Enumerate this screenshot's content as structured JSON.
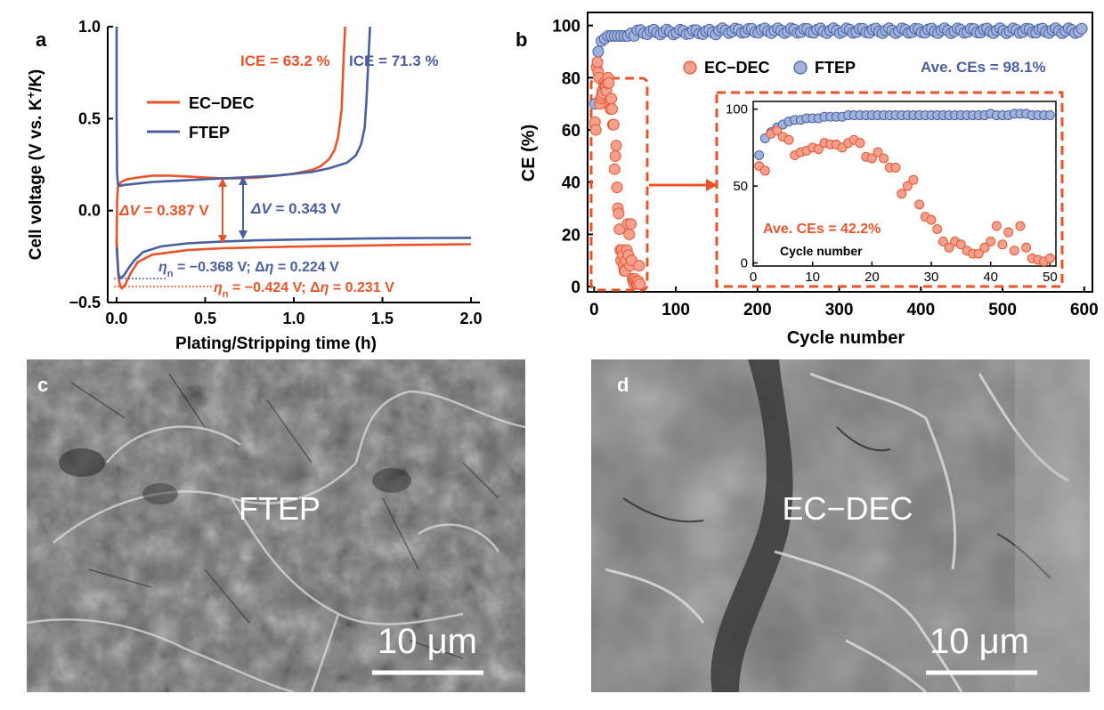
{
  "colors": {
    "ec_dec": "#e8542a",
    "ftep": "#4a5fa0",
    "ec_dec_marker_fill": "#f4a090",
    "ftep_marker_fill": "#9fb2dc",
    "axis": "#000000",
    "sem_background": "#6e6e6e"
  },
  "panel_labels": {
    "a": "a",
    "b": "b",
    "c": "c",
    "d": "d"
  },
  "panel_a": {
    "ice_ec": "ICE = 63.2 %",
    "ice_ftep": "ICE = 71.3 %",
    "dv_ec_sym": "ΔV",
    "dv_ec_val": " = 0.387 V",
    "dv_ftep_sym": "ΔV",
    "dv_ftep_val": " = 0.343 V",
    "eta_ftep_a": "η",
    "eta_ftep_sub": "n",
    "eta_ftep_b": " = −0.368 V; Δ",
    "eta_ftep_c": "η",
    "eta_ftep_d": " = 0.224 V",
    "eta_ec_a": "η",
    "eta_ec_sub": "n",
    "eta_ec_b": " = −0.424 V; Δ",
    "eta_ec_c": "η",
    "eta_ec_d": " = 0.231 V"
  },
  "panel_b": {
    "avg_ftep": "Ave. CEs = 98.1%",
    "avg_ec": "Ave. CEs = 42.2%",
    "inset_xlabel": "Cycle number"
  },
  "panel_c": {
    "label": "FTEP",
    "scale_bar": "10 μm"
  },
  "panel_d": {
    "label": "EC−DEC",
    "scale_bar": "10 μm"
  },
  "chart_data": [
    {
      "id": "a",
      "type": "line",
      "xlabel": "Plating/Stripping time (h)",
      "ylabel_main": "Cell voltage (V vs. K",
      "ylabel_sup": "+",
      "ylabel_end": "/K)",
      "xlim": [
        -0.05,
        2.05
      ],
      "ylim": [
        -0.5,
        1.0
      ],
      "x_ticks": [
        0,
        0.5,
        1.0,
        1.5,
        2.0
      ],
      "x_tick_labels": [
        "0.0",
        "0.5",
        "1.0",
        "1.5",
        "2.0"
      ],
      "y_ticks": [
        -0.5,
        0,
        0.5,
        1.0
      ],
      "y_tick_labels": [
        "−0.5",
        "0.0",
        "0.5",
        "1.0"
      ],
      "legend_position": "upper-left",
      "series": [
        {
          "name": "EC−DEC",
          "color": "#e8542a",
          "segments": [
            {
              "x": [
                0,
                0.003,
                0.008,
                0.02,
                0.035,
                0.06,
                0.12,
                0.2,
                0.3,
                0.4,
                0.5,
                0.6,
                0.7,
                0.8,
                0.9,
                1.0,
                1.1,
                1.15,
                1.2,
                1.23,
                1.25,
                1.27,
                1.28,
                1.29
              ],
              "y": [
                -0.2,
                0.05,
                0.13,
                0.15,
                0.16,
                0.17,
                0.18,
                0.19,
                0.19,
                0.185,
                0.18,
                0.175,
                0.175,
                0.18,
                0.19,
                0.2,
                0.22,
                0.24,
                0.28,
                0.33,
                0.4,
                0.55,
                0.8,
                1.0
              ]
            },
            {
              "x": [
                0,
                0.01,
                0.02,
                0.03,
                0.05,
                0.08,
                0.12,
                0.2,
                0.4,
                0.6,
                0.8,
                1.0,
                1.2,
                1.4,
                1.6,
                1.8,
                2.0
              ],
              "y": [
                -0.15,
                -0.35,
                -0.41,
                -0.424,
                -0.4,
                -0.34,
                -0.28,
                -0.24,
                -0.215,
                -0.205,
                -0.2,
                -0.196,
                -0.193,
                -0.19,
                -0.187,
                -0.185,
                -0.183
              ]
            }
          ]
        },
        {
          "name": "FTEP",
          "color": "#4a5fa0",
          "segments": [
            {
              "x": [
                0.0,
                0.0,
                0.003,
                0.008,
                0.02,
                0.05,
                0.1,
                0.2,
                0.3,
                0.4,
                0.5,
                0.6,
                0.7,
                0.8,
                0.9,
                1.0,
                1.1,
                1.2,
                1.3,
                1.35,
                1.38,
                1.4,
                1.41,
                1.42,
                1.43
              ],
              "y": [
                1.0,
                0.5,
                0.2,
                0.14,
                0.135,
                0.14,
                0.145,
                0.155,
                0.16,
                0.165,
                0.17,
                0.175,
                0.18,
                0.185,
                0.19,
                0.2,
                0.21,
                0.23,
                0.26,
                0.3,
                0.36,
                0.45,
                0.6,
                0.8,
                1.0
              ]
            },
            {
              "x": [
                0,
                0.01,
                0.02,
                0.04,
                0.07,
                0.1,
                0.15,
                0.25,
                0.4,
                0.6,
                0.8,
                1.0,
                1.2,
                1.4,
                1.6,
                1.8,
                2.0
              ],
              "y": [
                -0.2,
                -0.34,
                -0.368,
                -0.355,
                -0.31,
                -0.27,
                -0.225,
                -0.195,
                -0.178,
                -0.168,
                -0.162,
                -0.158,
                -0.155,
                -0.152,
                -0.15,
                -0.149,
                -0.148
              ]
            }
          ]
        }
      ]
    },
    {
      "id": "b",
      "type": "scatter",
      "xlabel": "Cycle number",
      "ylabel": "CE (%)",
      "xlim": [
        -8,
        610
      ],
      "ylim": [
        -2,
        105
      ],
      "x_ticks": [
        0,
        100,
        200,
        300,
        400,
        500,
        600
      ],
      "x_tick_labels": [
        "0",
        "100",
        "200",
        "300",
        "400",
        "500",
        "600"
      ],
      "y_ticks": [
        0,
        20,
        40,
        60,
        80,
        100
      ],
      "y_tick_labels": [
        "0",
        "20",
        "40",
        "60",
        "80",
        "100"
      ],
      "legend_position": "top-center",
      "series": [
        {
          "name": "EC−DEC",
          "marker_fill": "#f4a090",
          "marker_edge": "#e8542a",
          "generator": "ec"
        },
        {
          "name": "FTEP",
          "marker_fill": "#9fb2dc",
          "marker_edge": "#4a5fa0",
          "generator": "ftep"
        }
      ],
      "ec_dec_values": [
        63,
        60,
        84,
        86,
        82,
        80,
        70,
        72,
        73,
        75,
        74,
        78,
        77,
        77,
        75,
        78,
        80,
        78,
        69,
        68,
        72,
        68,
        62,
        62,
        45,
        50,
        54,
        38,
        30,
        28,
        22,
        14,
        10,
        14,
        12,
        8,
        6,
        6,
        10,
        14,
        24,
        12,
        20,
        8,
        24,
        10,
        3,
        2,
        1,
        3,
        2,
        1,
        1,
        2,
        8,
        1
      ],
      "ftep_values": [
        70,
        81,
        85,
        88,
        90,
        92,
        93,
        93,
        94,
        94,
        94,
        95,
        95,
        95,
        95,
        96,
        96,
        96,
        96,
        96,
        96,
        96,
        96,
        96,
        96,
        96,
        96,
        96,
        96,
        96,
        96,
        96,
        96,
        96,
        96,
        96,
        96,
        96,
        96,
        97,
        96,
        96,
        96,
        97,
        97,
        97,
        96,
        96,
        96,
        96
      ],
      "inset": {
        "xlabel": "Cycle number",
        "xlim": [
          0,
          51
        ],
        "ylim": [
          -2,
          105
        ],
        "x_ticks": [
          0,
          10,
          20,
          30,
          40,
          50
        ],
        "x_tick_labels": [
          "0",
          "10",
          "20",
          "30",
          "40",
          "50"
        ],
        "y_ticks": [
          0,
          50,
          100
        ],
        "y_tick_labels": [
          "0",
          "50",
          "100"
        ]
      }
    }
  ]
}
